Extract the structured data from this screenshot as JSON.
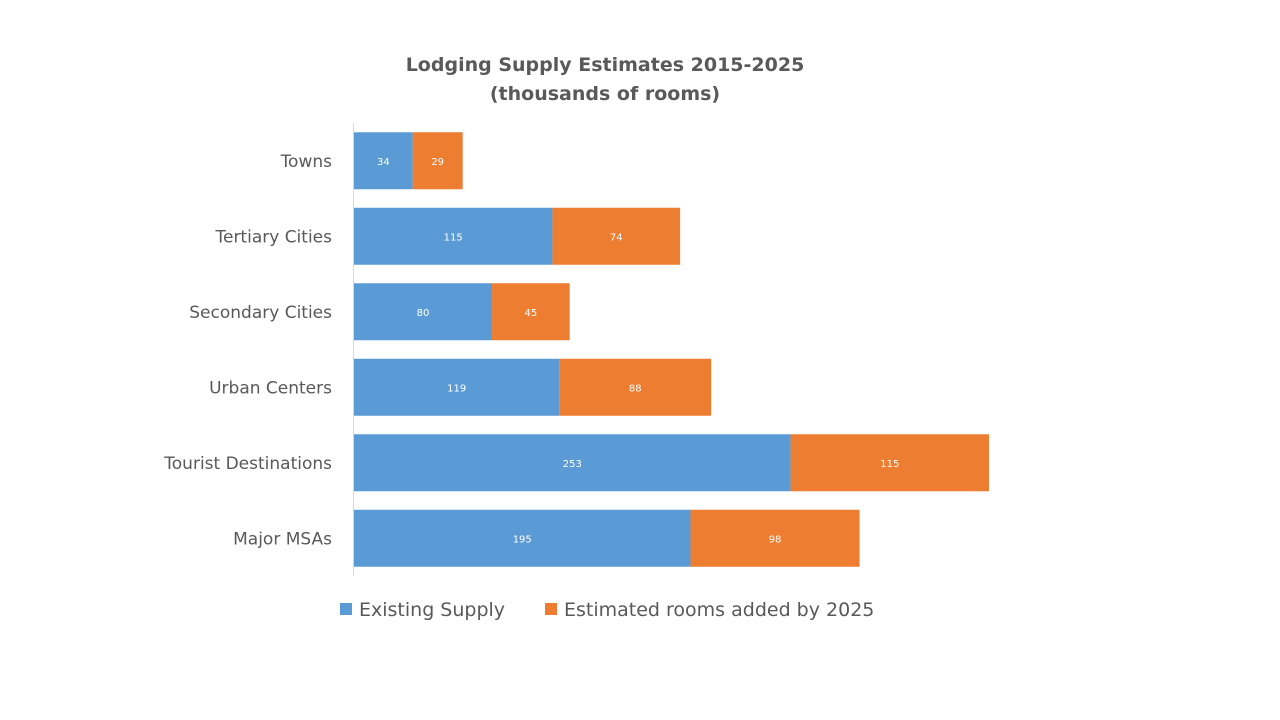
{
  "chart_data": {
    "type": "bar",
    "orientation": "horizontal",
    "stacked": true,
    "title": "Lodging Supply Estimates 2015-2025",
    "subtitle": "(thousands of rooms)",
    "xlabel": "",
    "ylabel": "",
    "categories": [
      "Towns",
      "Tertiary Cities",
      "Secondary Cities",
      "Urban Centers",
      "Tourist Destinations",
      "Major MSAs"
    ],
    "series": [
      {
        "name": "Existing Supply",
        "color": "#5B9BD5",
        "values": [
          34,
          115,
          80,
          119,
          253,
          195
        ]
      },
      {
        "name": "Estimated rooms added by 2025",
        "color": "#ED7D31",
        "values": [
          29,
          74,
          45,
          88,
          115,
          98
        ]
      }
    ],
    "xlim": [
      0,
      400
    ],
    "grid": false,
    "legend_position": "bottom",
    "data_labels": true
  }
}
